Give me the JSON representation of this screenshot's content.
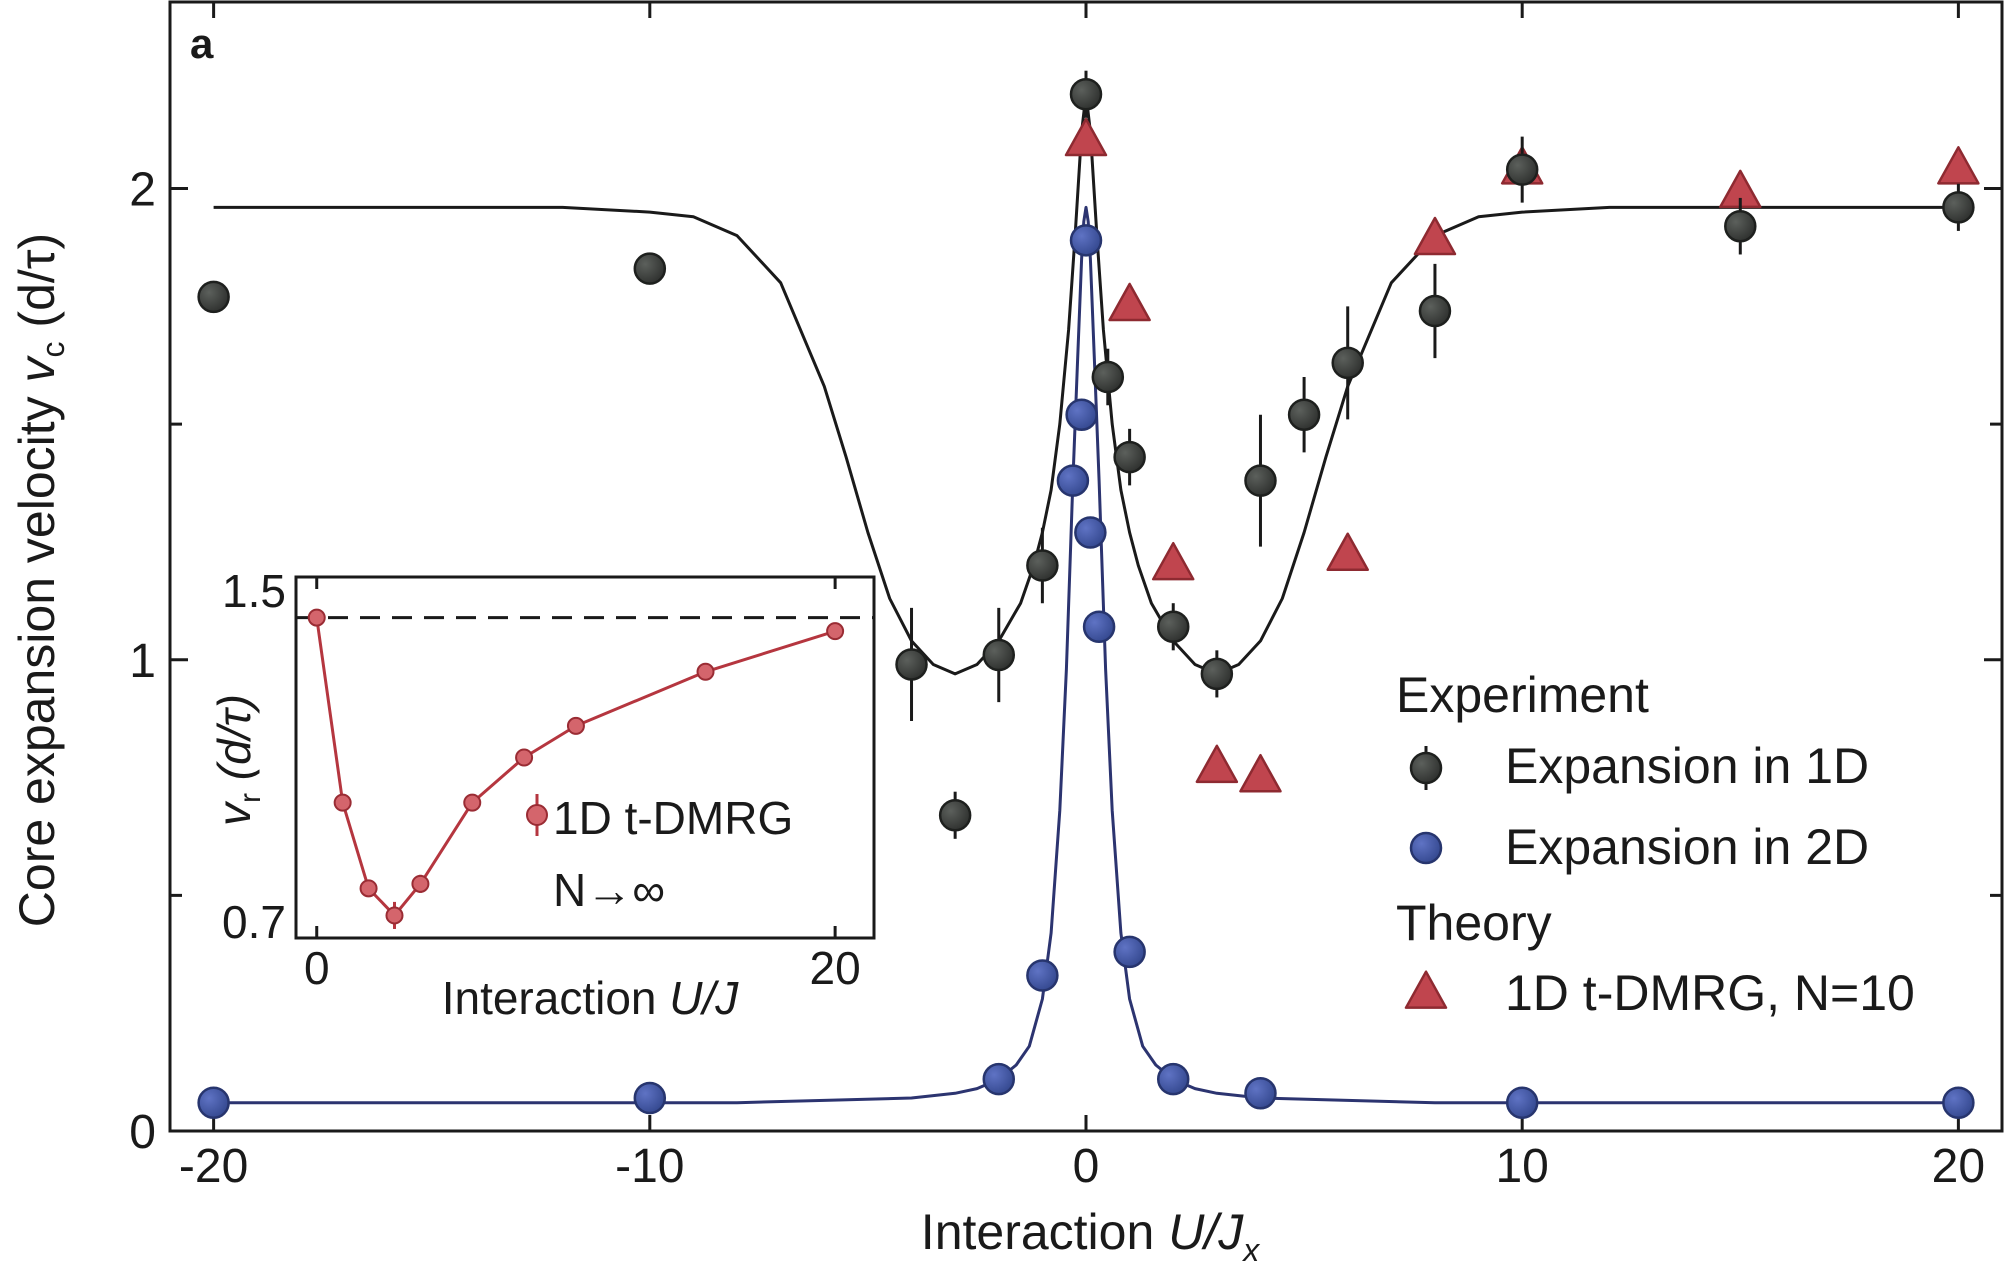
{
  "chart_data": {
    "type": "scatter",
    "panel_label": "a",
    "xlabel": "Interaction",
    "xlabel_var": "U/J",
    "xlabel_sub": "x",
    "ylabel": "Core expansion velocity",
    "ylabel_var": "v",
    "ylabel_sub": "c",
    "ylabel_unit": "(d/τ)",
    "xlim": [
      -21,
      21
    ],
    "ylim": [
      0,
      2.4
    ],
    "xticks": [
      -20,
      -10,
      0,
      10,
      20
    ],
    "xtick_labels": [
      "-20",
      "-10",
      "0",
      "10",
      "20"
    ],
    "yticks": [
      0,
      1,
      2
    ],
    "ytick_labels": [
      "0",
      "1",
      "2"
    ],
    "yticks_minor": [
      0.5,
      1.5
    ],
    "series": [
      {
        "name": "Expansion in 1D",
        "group": "Experiment",
        "marker": "circle",
        "color": "#3a3d3a",
        "x": [
          -20,
          -10,
          -4,
          -3,
          -2,
          -1,
          0,
          0.5,
          1,
          2,
          3,
          4,
          5,
          6,
          8,
          10,
          15,
          20
        ],
        "y": [
          1.77,
          1.83,
          0.99,
          0.67,
          1.01,
          1.2,
          2.2,
          1.6,
          1.43,
          1.07,
          0.97,
          1.38,
          1.52,
          1.63,
          1.74,
          2.04,
          1.92,
          1.96
        ],
        "err": [
          0,
          0,
          0.12,
          0.05,
          0.1,
          0.08,
          0.05,
          0.06,
          0.06,
          0.05,
          0.05,
          0.14,
          0.08,
          0.12,
          0.1,
          0.07,
          0.06,
          0.05
        ]
      },
      {
        "name": "Expansion in 2D",
        "group": "Experiment",
        "marker": "circle",
        "color": "#3b4fa0",
        "x": [
          -20,
          -10,
          -2,
          -1,
          -0.3,
          -0.1,
          0,
          0.1,
          0.3,
          1,
          2,
          4,
          10,
          20
        ],
        "y": [
          0.06,
          0.07,
          0.11,
          0.33,
          1.38,
          1.52,
          1.89,
          1.27,
          1.07,
          0.38,
          0.11,
          0.08,
          0.06,
          0.06
        ],
        "err": [
          0,
          0,
          0,
          0.03,
          0,
          0,
          0,
          0,
          0,
          0,
          0,
          0,
          0,
          0
        ]
      },
      {
        "name": "1D t-DMRG, N=10",
        "group": "Theory",
        "marker": "triangle",
        "color": "#c0454e",
        "x": [
          0,
          1,
          2,
          3,
          4,
          6,
          8,
          10,
          15,
          20
        ],
        "y": [
          2.1,
          1.75,
          1.2,
          0.77,
          0.75,
          1.22,
          1.89,
          2.04,
          1.99,
          2.04
        ]
      }
    ],
    "fit_curves": [
      {
        "name": "fit 1D",
        "color": "#1a1a1a",
        "x": [
          -20,
          -18,
          -16,
          -14,
          -12,
          -10,
          -9,
          -8,
          -7,
          -6,
          -5.5,
          -5,
          -4.5,
          -4,
          -3.5,
          -3,
          -2.5,
          -2,
          -1.5,
          -1.2,
          -1,
          -0.8,
          -0.6,
          -0.4,
          -0.25,
          -0.1,
          0,
          0.1,
          0.25,
          0.4,
          0.6,
          0.8,
          1,
          1.2,
          1.5,
          2,
          2.5,
          3,
          3.5,
          4,
          4.5,
          5,
          5.5,
          6,
          7,
          8,
          9,
          10,
          12,
          14,
          16,
          18,
          20
        ],
        "y": [
          1.96,
          1.96,
          1.96,
          1.96,
          1.96,
          1.95,
          1.94,
          1.9,
          1.8,
          1.58,
          1.43,
          1.27,
          1.13,
          1.04,
          0.99,
          0.97,
          0.99,
          1.04,
          1.12,
          1.2,
          1.27,
          1.36,
          1.5,
          1.7,
          1.9,
          2.12,
          2.2,
          2.12,
          1.9,
          1.7,
          1.5,
          1.36,
          1.27,
          1.2,
          1.12,
          1.04,
          0.99,
          0.97,
          0.99,
          1.04,
          1.13,
          1.27,
          1.43,
          1.58,
          1.8,
          1.9,
          1.94,
          1.95,
          1.96,
          1.96,
          1.96,
          1.96,
          1.96
        ]
      },
      {
        "name": "fit 2D",
        "color": "#2c3470",
        "x": [
          -20,
          -12,
          -8,
          -6,
          -4,
          -3,
          -2.5,
          -2,
          -1.6,
          -1.3,
          -1,
          -0.8,
          -0.6,
          -0.45,
          -0.3,
          -0.2,
          -0.1,
          -0.05,
          0,
          0.05,
          0.1,
          0.2,
          0.3,
          0.45,
          0.6,
          0.8,
          1,
          1.3,
          1.6,
          2,
          2.5,
          3,
          4,
          6,
          8,
          12,
          20
        ],
        "y": [
          0.06,
          0.06,
          0.06,
          0.065,
          0.07,
          0.08,
          0.09,
          0.11,
          0.14,
          0.18,
          0.28,
          0.42,
          0.68,
          0.98,
          1.38,
          1.62,
          1.85,
          1.93,
          1.96,
          1.93,
          1.85,
          1.62,
          1.38,
          0.98,
          0.68,
          0.42,
          0.28,
          0.18,
          0.14,
          0.11,
          0.09,
          0.08,
          0.07,
          0.065,
          0.06,
          0.06,
          0.06
        ]
      }
    ],
    "legend": {
      "placement": "bottom-right",
      "group_experiment": "Experiment",
      "item_1d": "Expansion in 1D",
      "item_2d": "Expansion in 2D",
      "group_theory": "Theory",
      "item_theory": "1D t-DMRG, N=10"
    },
    "inset": {
      "type": "line",
      "placement": "bottom-left",
      "xlabel": "Interaction",
      "xlabel_var": "U/J",
      "ylabel_var": "v",
      "ylabel_sub": "r",
      "ylabel_unit": "(d/τ)",
      "xlim": [
        -0.8,
        21.5
      ],
      "ylim": [
        0.7,
        1.5
      ],
      "xtick_labels": [
        "0",
        "20"
      ],
      "xticks": [
        0,
        20
      ],
      "ytick_labels": [
        "0.7",
        "1.5"
      ],
      "yticks": [
        0.7,
        1.5
      ],
      "reference_line": 1.41,
      "legend_item": "1D t-DMRG",
      "legend_note": "N→∞",
      "series": {
        "name": "1D t-DMRG",
        "color": "#b5363f",
        "x": [
          0,
          1,
          2,
          3,
          4,
          6,
          8,
          10,
          15,
          20
        ],
        "y": [
          1.41,
          1.0,
          0.81,
          0.75,
          0.82,
          1.0,
          1.1,
          1.17,
          1.29,
          1.38
        ],
        "err": [
          0,
          0,
          0,
          0.03,
          0.02,
          0,
          0,
          0,
          0,
          0
        ]
      }
    }
  }
}
